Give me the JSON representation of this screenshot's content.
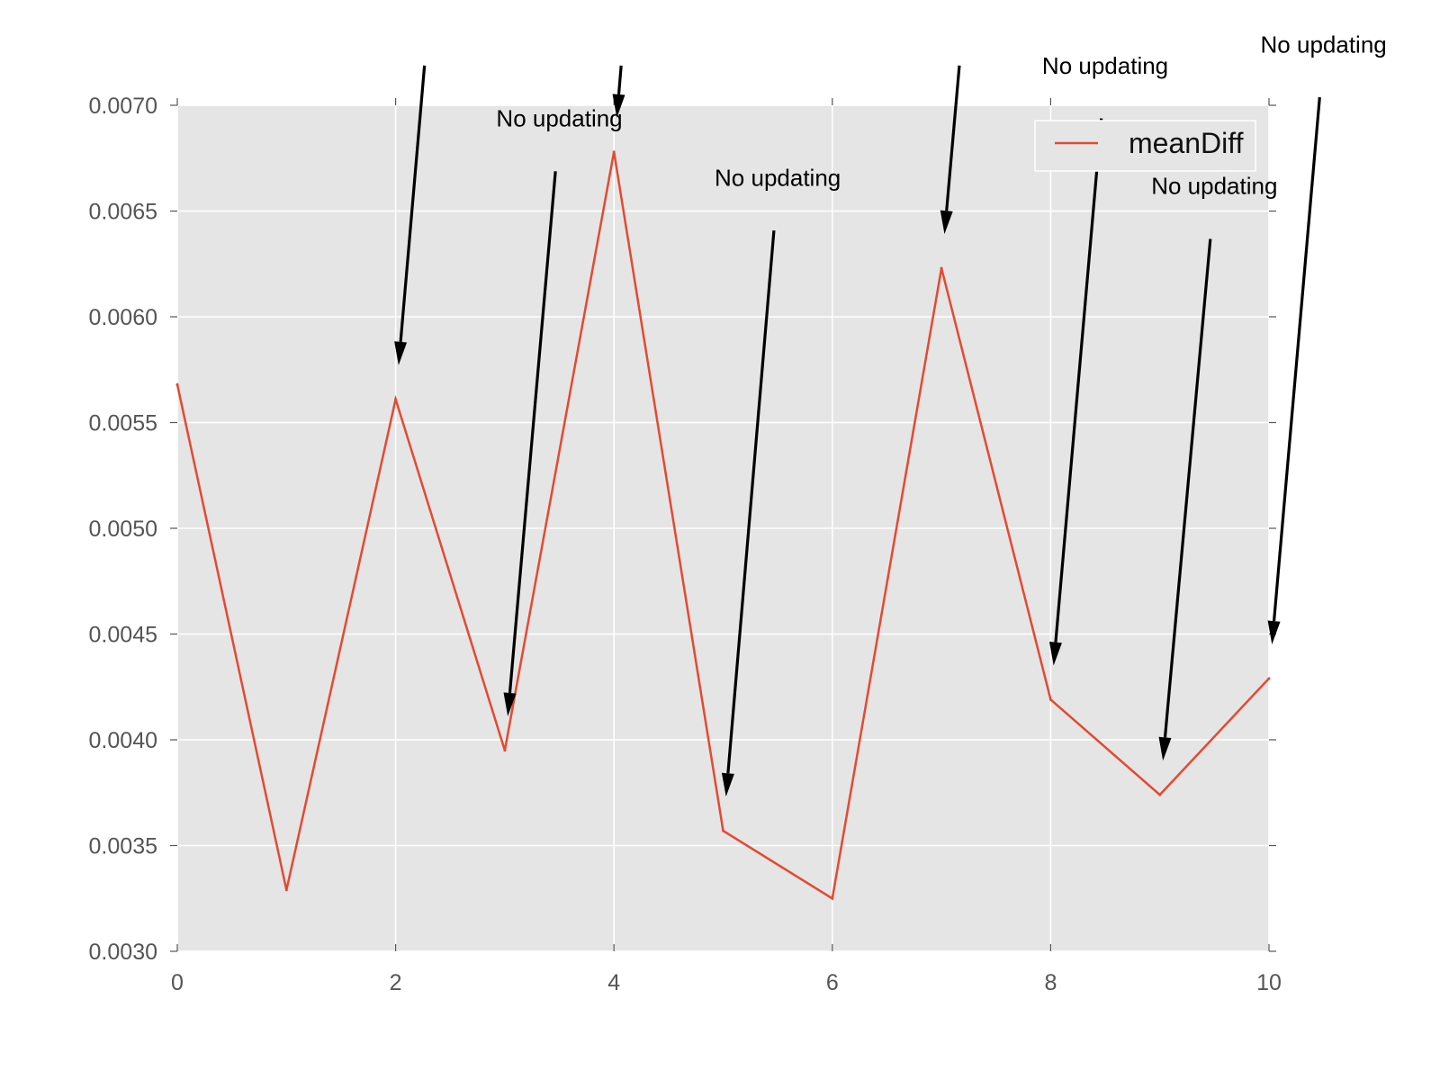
{
  "chart_data": {
    "type": "line",
    "title": "",
    "xlabel": "",
    "ylabel": "",
    "xlim": [
      0,
      10
    ],
    "ylim": [
      0.003,
      0.007
    ],
    "x_ticks": [
      {
        "value": 0,
        "label": "0"
      },
      {
        "value": 2,
        "label": "2"
      },
      {
        "value": 4,
        "label": "4"
      },
      {
        "value": 6,
        "label": "6"
      },
      {
        "value": 8,
        "label": "8"
      },
      {
        "value": 10,
        "label": "10"
      }
    ],
    "y_ticks": [
      {
        "value": 0.003,
        "label": "0.0030"
      },
      {
        "value": 0.0035,
        "label": "0.0035"
      },
      {
        "value": 0.004,
        "label": "0.0040"
      },
      {
        "value": 0.0045,
        "label": "0.0045"
      },
      {
        "value": 0.005,
        "label": "0.0050"
      },
      {
        "value": 0.0055,
        "label": "0.0055"
      },
      {
        "value": 0.006,
        "label": "0.0060"
      },
      {
        "value": 0.0065,
        "label": "0.0065"
      },
      {
        "value": 0.007,
        "label": "0.0070"
      }
    ],
    "grid": true,
    "style": "ggplot",
    "legend_position": "upper right",
    "series": [
      {
        "name": "meanDiff",
        "color": "#e24a33",
        "x": [
          0,
          1,
          2,
          3,
          4,
          5,
          6,
          7,
          8,
          9,
          10
        ],
        "y": [
          0.00568,
          0.00329,
          0.00561,
          0.00395,
          0.00678,
          0.00357,
          0.00325,
          0.00623,
          0.00419,
          0.00374,
          0.00429
        ]
      }
    ],
    "annotations": [
      {
        "text": "No updating",
        "xy": [
          2,
          0.00561
        ],
        "xytext": [
          2.3,
          0.0074
        ],
        "text_visible": false
      },
      {
        "text": "No updating",
        "xy": [
          3,
          0.00395
        ],
        "xytext": [
          3.5,
          0.0069
        ],
        "text_visible": true
      },
      {
        "text": "No updating",
        "xy": [
          4,
          0.00678
        ],
        "xytext": [
          4.1,
          0.0074
        ],
        "text_visible": false
      },
      {
        "text": "No updating",
        "xy": [
          5,
          0.00357
        ],
        "xytext": [
          5.5,
          0.00662
        ],
        "text_visible": true
      },
      {
        "text": "No updating",
        "xy": [
          7,
          0.00623
        ],
        "xytext": [
          7.2,
          0.0074
        ],
        "text_visible": false
      },
      {
        "text": "No updating",
        "xy": [
          8,
          0.00419
        ],
        "xytext": [
          8.5,
          0.00715
        ],
        "text_visible": true
      },
      {
        "text": "No updating",
        "xy": [
          9,
          0.00374
        ],
        "xytext": [
          9.5,
          0.00658
        ],
        "text_visible": true
      },
      {
        "text": "No updating",
        "xy": [
          10,
          0.00429
        ],
        "xytext": [
          10.5,
          0.00725
        ],
        "text_visible": true
      }
    ],
    "annotation_color": "#000000"
  }
}
